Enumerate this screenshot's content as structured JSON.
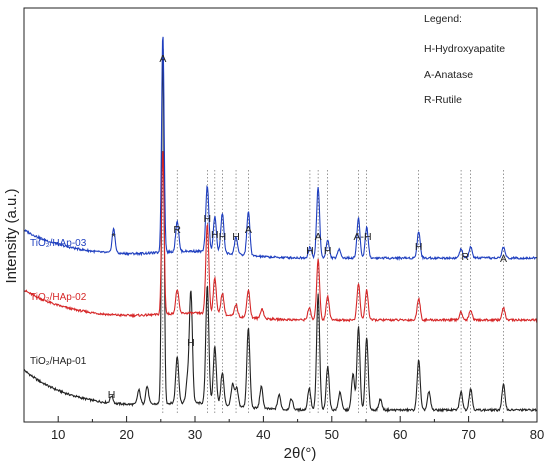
{
  "chart_data": {
    "type": "line",
    "xlabel": "2θ(°)",
    "ylabel": "Intensity (a.u.)",
    "xlim": [
      5,
      80
    ],
    "x_ticks": [
      10,
      20,
      30,
      40,
      50,
      60,
      70,
      80
    ],
    "y_ticks_shown": false,
    "legend": {
      "title": "Legend:",
      "entries": [
        "H-Hydroxyapatite",
        "A-Anatase",
        "R-Rutile"
      ],
      "placement": "top-right"
    },
    "series": [
      {
        "name": "TiO2/HAp-01",
        "color": "#222222",
        "baseline_label": "TiO₂/HAp-01",
        "base": 0.0,
        "offset": 0.0,
        "scale": 1.0,
        "peaks": [
          [
            17.8,
            0.02
          ],
          [
            21.8,
            0.04
          ],
          [
            23.0,
            0.05
          ],
          [
            25.3,
            1.0
          ],
          [
            27.4,
            0.13
          ],
          [
            28.9,
            0.06
          ],
          [
            29.4,
            0.31
          ],
          [
            31.8,
            0.33
          ],
          [
            32.9,
            0.16
          ],
          [
            34.0,
            0.09
          ],
          [
            35.5,
            0.06
          ],
          [
            36.1,
            0.05
          ],
          [
            37.8,
            0.22
          ],
          [
            39.7,
            0.06
          ],
          [
            42.3,
            0.04
          ],
          [
            44.1,
            0.03
          ],
          [
            46.7,
            0.06
          ],
          [
            48.0,
            0.32
          ],
          [
            49.4,
            0.12
          ],
          [
            51.2,
            0.05
          ],
          [
            53.1,
            0.1
          ],
          [
            53.9,
            0.23
          ],
          [
            55.1,
            0.2
          ],
          [
            57.1,
            0.03
          ],
          [
            62.7,
            0.14
          ],
          [
            64.2,
            0.05
          ],
          [
            68.9,
            0.05
          ],
          [
            70.3,
            0.06
          ],
          [
            75.1,
            0.07
          ]
        ]
      },
      {
        "name": "TiO2/HAp-02",
        "color": "#d62728",
        "baseline_label": "TiO₂/HAp-02",
        "base": 0.0,
        "offset": 0.32,
        "scale": 0.62,
        "peaks": [
          [
            25.3,
            0.83
          ],
          [
            27.4,
            0.12
          ],
          [
            31.8,
            0.45
          ],
          [
            32.9,
            0.18
          ],
          [
            34.0,
            0.11
          ],
          [
            36.0,
            0.06
          ],
          [
            37.8,
            0.14
          ],
          [
            39.8,
            0.05
          ],
          [
            46.7,
            0.06
          ],
          [
            48.0,
            0.3
          ],
          [
            49.4,
            0.12
          ],
          [
            53.9,
            0.18
          ],
          [
            55.1,
            0.15
          ],
          [
            62.7,
            0.11
          ],
          [
            68.9,
            0.04
          ],
          [
            70.3,
            0.05
          ],
          [
            75.1,
            0.06
          ]
        ]
      },
      {
        "name": "TiO2/HAp-03",
        "color": "#1f3fbf",
        "baseline_label": "TiO₂/HAp-03",
        "base": 0.0,
        "offset": 0.52,
        "scale": 0.74,
        "peaks": [
          [
            18.1,
            0.11
          ],
          [
            25.3,
            1.0
          ],
          [
            27.4,
            0.14
          ],
          [
            31.8,
            0.3
          ],
          [
            32.9,
            0.16
          ],
          [
            34.0,
            0.18
          ],
          [
            36.0,
            0.08
          ],
          [
            37.8,
            0.2
          ],
          [
            46.8,
            0.05
          ],
          [
            48.0,
            0.32
          ],
          [
            49.4,
            0.08
          ],
          [
            51.1,
            0.04
          ],
          [
            53.9,
            0.18
          ],
          [
            55.1,
            0.14
          ],
          [
            62.7,
            0.12
          ],
          [
            68.9,
            0.04
          ],
          [
            70.3,
            0.05
          ],
          [
            75.1,
            0.05
          ]
        ]
      }
    ],
    "peak_annotations": [
      {
        "label": "A",
        "x": 25.3,
        "series": "TiO2/HAp-03"
      },
      {
        "label": "R",
        "x": 27.4,
        "series": "TiO2/HAp-03"
      },
      {
        "label": "H",
        "x": 31.8,
        "series": "TiO2/HAp-03"
      },
      {
        "label": "H",
        "x": 32.9,
        "series": "TiO2/HAp-03"
      },
      {
        "label": "H",
        "x": 34.0,
        "series": "TiO2/HAp-03"
      },
      {
        "label": "A",
        "x": 37.8,
        "series": "TiO2/HAp-03"
      },
      {
        "label": "H",
        "x": 36.0,
        "series": "TiO2/HAp-03"
      },
      {
        "label": "H",
        "x": 46.8,
        "series": "TiO2/HAp-03"
      },
      {
        "label": "A",
        "x": 48.0,
        "series": "TiO2/HAp-03"
      },
      {
        "label": "H",
        "x": 49.4,
        "series": "TiO2/HAp-03"
      },
      {
        "label": "A-H",
        "x": 54.5,
        "series": "TiO2/HAp-03"
      },
      {
        "label": "H",
        "x": 62.7,
        "series": "TiO2/HAp-03"
      },
      {
        "label": "R",
        "x": 69.5,
        "series": "TiO2/HAp-03"
      },
      {
        "label": "A",
        "x": 75.1,
        "series": "TiO2/HAp-03"
      },
      {
        "label": "*",
        "x": 18.1,
        "series": "TiO2/HAp-03"
      },
      {
        "label": "H",
        "x": 29.4,
        "series": "TiO2/HAp-01"
      },
      {
        "label": "H",
        "x": 17.8,
        "series": "TiO2/HAp-01"
      }
    ],
    "reference_lines_x": [
      25.3,
      27.4,
      31.8,
      32.9,
      34.0,
      36.0,
      37.8,
      46.8,
      48.0,
      49.4,
      53.9,
      55.1,
      62.7,
      68.9,
      70.3,
      75.1
    ]
  }
}
